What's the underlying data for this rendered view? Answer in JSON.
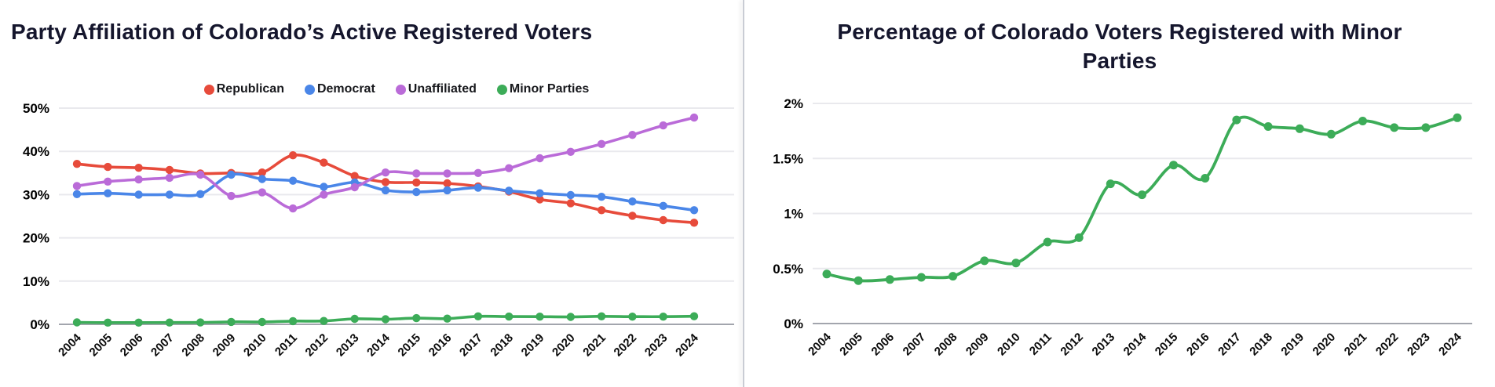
{
  "colors": {
    "background": "#ffffff",
    "title_text": "#15162d",
    "axis_text": "#000000",
    "gridline": "#e9e9ed",
    "axis_line": "#a2a5ad",
    "divider": "#c9ccd4",
    "republican": "#e74b3b",
    "democrat": "#4a86e8",
    "unaffiliated": "#ba6bd8",
    "minor_parties": "#3cac58"
  },
  "chart_data": [
    {
      "type": "line",
      "title": "Party Affiliation of Colorado’s Active Registered Voters",
      "x": [
        "2004",
        "2005",
        "2006",
        "2007",
        "2008",
        "2009",
        "2010",
        "2011",
        "2012",
        "2013",
        "2014",
        "2015",
        "2016",
        "2017",
        "2018",
        "2019",
        "2020",
        "2021",
        "2022",
        "2023",
        "2024"
      ],
      "xlabel": "",
      "ylabel": "",
      "ylim": [
        0,
        50
      ],
      "ytick_labels": [
        "0%",
        "10%",
        "20%",
        "30%",
        "40%",
        "50%"
      ],
      "grid": true,
      "legend_position": "top",
      "series": [
        {
          "name": "Republican",
          "color": "#e74b3b",
          "values": [
            37.1,
            36.4,
            36.2,
            35.7,
            34.9,
            35.0,
            35.1,
            39.1,
            37.4,
            34.3,
            32.9,
            32.8,
            32.6,
            31.9,
            30.7,
            28.9,
            28.0,
            26.4,
            25.1,
            24.1,
            23.5
          ]
        },
        {
          "name": "Democrat",
          "color": "#4a86e8",
          "values": [
            30.1,
            30.3,
            30.0,
            30.0,
            30.1,
            34.6,
            33.6,
            33.2,
            31.8,
            32.8,
            31.0,
            30.6,
            31.0,
            31.6,
            30.9,
            30.3,
            29.9,
            29.5,
            28.4,
            27.4,
            26.4
          ]
        },
        {
          "name": "Unaffiliated",
          "color": "#ba6bd8",
          "values": [
            32.0,
            33.0,
            33.5,
            33.9,
            34.6,
            29.7,
            30.5,
            26.8,
            30.0,
            31.7,
            35.1,
            34.9,
            34.9,
            35.0,
            36.1,
            38.4,
            39.9,
            41.7,
            43.8,
            46.0,
            47.8
          ]
        },
        {
          "name": "Minor Parties",
          "color": "#3cac58",
          "values": [
            0.45,
            0.39,
            0.4,
            0.42,
            0.43,
            0.57,
            0.55,
            0.74,
            0.78,
            1.27,
            1.17,
            1.44,
            1.32,
            1.85,
            1.79,
            1.77,
            1.72,
            1.84,
            1.78,
            1.78,
            1.87
          ]
        }
      ]
    },
    {
      "type": "line",
      "title": "Percentage of Colorado Voters Registered with Minor Parties",
      "x": [
        "2004",
        "2005",
        "2006",
        "2007",
        "2008",
        "2009",
        "2010",
        "2011",
        "2012",
        "2013",
        "2014",
        "2015",
        "2016",
        "2017",
        "2018",
        "2019",
        "2020",
        "2021",
        "2022",
        "2023",
        "2024"
      ],
      "xlabel": "",
      "ylabel": "",
      "ylim": [
        0,
        2
      ],
      "ytick_labels": [
        "0%",
        "0.5%",
        "1%",
        "1.5%",
        "2%"
      ],
      "grid": true,
      "legend_position": "none",
      "series": [
        {
          "name": "Minor Parties",
          "color": "#3cac58",
          "values": [
            0.45,
            0.39,
            0.4,
            0.42,
            0.43,
            0.57,
            0.55,
            0.74,
            0.78,
            1.27,
            1.17,
            1.44,
            1.32,
            1.85,
            1.79,
            1.77,
            1.72,
            1.84,
            1.78,
            1.78,
            1.87
          ]
        }
      ]
    }
  ]
}
